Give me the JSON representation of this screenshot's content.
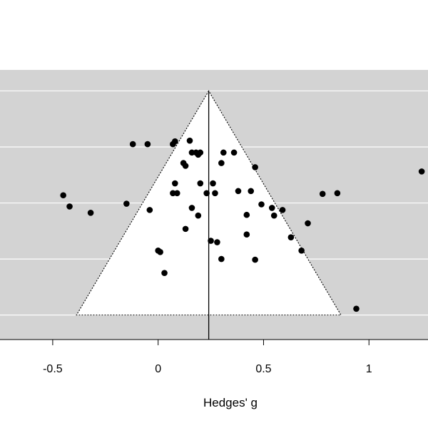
{
  "chart_data": {
    "type": "scatter",
    "title": "",
    "xlabel": "Hedges' g",
    "ylabel": "",
    "xlim": [
      -0.75,
      1.28
    ],
    "ylim": [
      0.355,
      -0.03
    ],
    "x_ticks": [
      {
        "value": -0.5,
        "label": "-0.5"
      },
      {
        "value": 0,
        "label": "0"
      },
      {
        "value": 0.5,
        "label": "0.5"
      },
      {
        "value": 1,
        "label": "1"
      }
    ],
    "y_gridlines": [
      0,
      0.08,
      0.16,
      0.24,
      0.32
    ],
    "y_axis_visible": false,
    "summary_effect": 0.24,
    "funnel": {
      "apex_se": 0,
      "base_se": 0.32,
      "ci_multiplier": 1.96
    },
    "colors": {
      "panel": "#d3d3d3",
      "funnel_fill": "#ffffff",
      "gridline": "#ffffff",
      "points": "#000000",
      "funnel_border": "#000000"
    },
    "series": [
      {
        "points": [
          {
            "x": -0.12,
            "y": 0.076
          },
          {
            "x": -0.05,
            "y": 0.076
          },
          {
            "x": 0.07,
            "y": 0.076
          },
          {
            "x": 0.08,
            "y": 0.072
          },
          {
            "x": 0.15,
            "y": 0.071
          },
          {
            "x": 0.16,
            "y": 0.088
          },
          {
            "x": 0.18,
            "y": 0.088
          },
          {
            "x": 0.19,
            "y": 0.091
          },
          {
            "x": 0.2,
            "y": 0.088
          },
          {
            "x": 0.31,
            "y": 0.088
          },
          {
            "x": 0.36,
            "y": 0.088
          },
          {
            "x": 0.3,
            "y": 0.103
          },
          {
            "x": 0.12,
            "y": 0.103
          },
          {
            "x": 0.13,
            "y": 0.107
          },
          {
            "x": 0.46,
            "y": 0.109
          },
          {
            "x": 0.08,
            "y": 0.132
          },
          {
            "x": 0.2,
            "y": 0.132
          },
          {
            "x": 0.26,
            "y": 0.132
          },
          {
            "x": 0.38,
            "y": 0.143
          },
          {
            "x": 0.44,
            "y": 0.143
          },
          {
            "x": 0.07,
            "y": 0.146
          },
          {
            "x": 0.09,
            "y": 0.146
          },
          {
            "x": 0.23,
            "y": 0.146
          },
          {
            "x": 0.27,
            "y": 0.146
          },
          {
            "x": 0.78,
            "y": 0.147
          },
          {
            "x": 0.85,
            "y": 0.146
          },
          {
            "x": 1.25,
            "y": 0.115
          },
          {
            "x": -0.45,
            "y": 0.149
          },
          {
            "x": -0.42,
            "y": 0.165
          },
          {
            "x": -0.32,
            "y": 0.174
          },
          {
            "x": -0.15,
            "y": 0.161
          },
          {
            "x": -0.04,
            "y": 0.17
          },
          {
            "x": 0.16,
            "y": 0.167
          },
          {
            "x": 0.19,
            "y": 0.178
          },
          {
            "x": 0.49,
            "y": 0.162
          },
          {
            "x": 0.54,
            "y": 0.167
          },
          {
            "x": 0.59,
            "y": 0.17
          },
          {
            "x": 0.42,
            "y": 0.177
          },
          {
            "x": 0.55,
            "y": 0.178
          },
          {
            "x": 0.71,
            "y": 0.189
          },
          {
            "x": 0.13,
            "y": 0.197
          },
          {
            "x": 0.42,
            "y": 0.205
          },
          {
            "x": 0.63,
            "y": 0.209
          },
          {
            "x": 0.25,
            "y": 0.214
          },
          {
            "x": 0.28,
            "y": 0.216
          },
          {
            "x": 0.68,
            "y": 0.228
          },
          {
            "x": 0,
            "y": 0.228
          },
          {
            "x": 0.01,
            "y": 0.23
          },
          {
            "x": 0.3,
            "y": 0.24
          },
          {
            "x": 0.46,
            "y": 0.241
          },
          {
            "x": 0.03,
            "y": 0.26
          },
          {
            "x": 0.94,
            "y": 0.311
          }
        ]
      }
    ]
  },
  "axes": {
    "xlabel": "Hedges' g"
  }
}
